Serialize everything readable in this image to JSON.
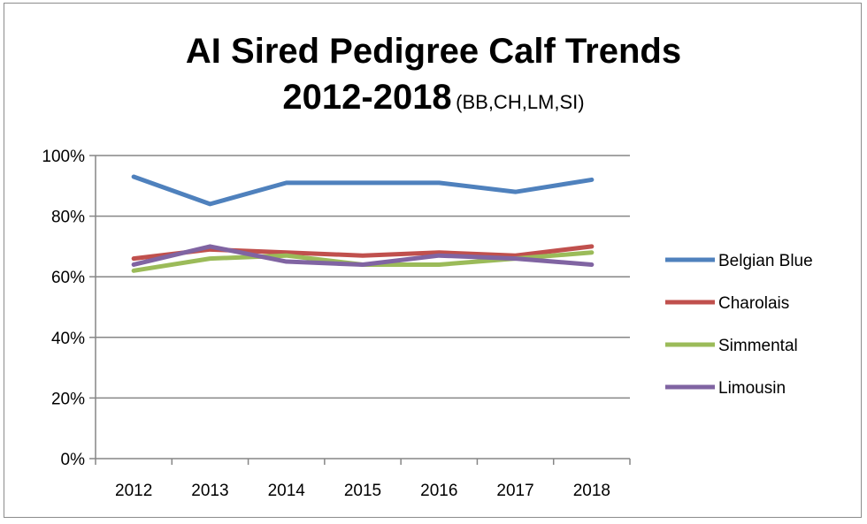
{
  "chart_data": {
    "type": "line",
    "title": "AI Sired Pedigree Calf Trends",
    "title_line2": "2012-2018",
    "subtitle": "(BB,CH,LM,SI)",
    "xlabel": "",
    "ylabel": "",
    "categories": [
      "2012",
      "2013",
      "2014",
      "2015",
      "2016",
      "2017",
      "2018"
    ],
    "ylim": [
      0,
      100
    ],
    "y_ticks": [
      0,
      20,
      40,
      60,
      80,
      100
    ],
    "y_tick_labels": [
      "0%",
      "20%",
      "40%",
      "60%",
      "80%",
      "100%"
    ],
    "grid": true,
    "legend_position": "right",
    "series": [
      {
        "name": "Belgian Blue",
        "color": "#4f81bd",
        "values": [
          93,
          84,
          91,
          91,
          91,
          88,
          92
        ]
      },
      {
        "name": "Charolais",
        "color": "#c0504d",
        "values": [
          66,
          69,
          68,
          67,
          68,
          67,
          70
        ]
      },
      {
        "name": "Simmental",
        "color": "#9bbb59",
        "values": [
          62,
          66,
          67,
          64,
          64,
          66,
          68
        ]
      },
      {
        "name": "Limousin",
        "color": "#8064a2",
        "values": [
          64,
          70,
          65,
          64,
          67,
          66,
          64
        ]
      }
    ]
  }
}
